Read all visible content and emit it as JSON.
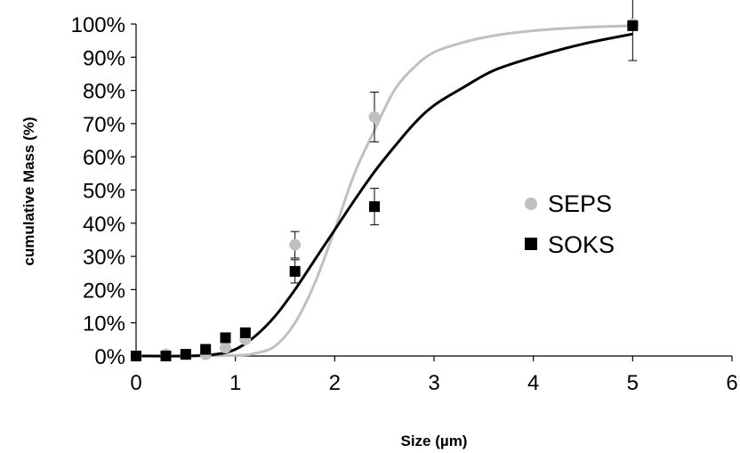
{
  "chart_data": {
    "type": "scatter",
    "xlabel": "Size (µm)",
    "ylabel": "cumulative Mass (%)",
    "xlim": [
      0,
      6
    ],
    "ylim": [
      0,
      100
    ],
    "x_ticks": [
      "0",
      "1",
      "2",
      "3",
      "4",
      "5",
      "6"
    ],
    "y_ticks": [
      "0%",
      "10%",
      "20%",
      "30%",
      "40%",
      "50%",
      "60%",
      "70%",
      "80%",
      "90%",
      "100%"
    ],
    "grid": false,
    "legend_position": "right",
    "series": [
      {
        "name": "SEPS",
        "marker": "circle",
        "color": "#c0c0c0",
        "points": [
          {
            "x": 0,
            "y": 0
          },
          {
            "x": 0.3,
            "y": 0.5
          },
          {
            "x": 0.5,
            "y": 0.5
          },
          {
            "x": 0.7,
            "y": 0.5
          },
          {
            "x": 0.9,
            "y": 2.5
          },
          {
            "x": 1.1,
            "y": 5
          },
          {
            "x": 1.6,
            "y": 33.5,
            "err": 4
          },
          {
            "x": 2.4,
            "y": 72,
            "err": 7.5
          },
          {
            "x": 5,
            "y": 100
          }
        ],
        "fit_curve": [
          [
            0,
            0
          ],
          [
            0.5,
            0
          ],
          [
            1,
            0.2
          ],
          [
            1.2,
            0.8
          ],
          [
            1.4,
            3
          ],
          [
            1.6,
            10
          ],
          [
            1.8,
            22
          ],
          [
            2.0,
            38
          ],
          [
            2.2,
            55
          ],
          [
            2.4,
            68
          ],
          [
            2.6,
            80
          ],
          [
            2.8,
            87
          ],
          [
            3.0,
            91.5
          ],
          [
            3.3,
            94.5
          ],
          [
            3.6,
            96.5
          ],
          [
            4.0,
            98
          ],
          [
            4.5,
            99
          ],
          [
            5.0,
            99.5
          ]
        ]
      },
      {
        "name": "SOKS",
        "marker": "square",
        "color": "#000000",
        "points": [
          {
            "x": 0,
            "y": 0
          },
          {
            "x": 0.3,
            "y": 0
          },
          {
            "x": 0.5,
            "y": 0.5
          },
          {
            "x": 0.7,
            "y": 2
          },
          {
            "x": 0.9,
            "y": 5.5
          },
          {
            "x": 1.1,
            "y": 7
          },
          {
            "x": 1.6,
            "y": 25.5,
            "err": 3.5
          },
          {
            "x": 2.4,
            "y": 45,
            "err": 5.5
          },
          {
            "x": 5,
            "y": 99.5,
            "err": 10.5
          }
        ],
        "fit_curve": [
          [
            0,
            0
          ],
          [
            0.5,
            0
          ],
          [
            0.8,
            0.5
          ],
          [
            1.0,
            2
          ],
          [
            1.2,
            6
          ],
          [
            1.4,
            12
          ],
          [
            1.6,
            20
          ],
          [
            1.8,
            29
          ],
          [
            2.0,
            38
          ],
          [
            2.2,
            47
          ],
          [
            2.4,
            55.5
          ],
          [
            2.6,
            63
          ],
          [
            2.8,
            70
          ],
          [
            3.0,
            75.5
          ],
          [
            3.3,
            81
          ],
          [
            3.6,
            86
          ],
          [
            4.0,
            90
          ],
          [
            4.5,
            94
          ],
          [
            5.0,
            97
          ]
        ]
      }
    ]
  }
}
